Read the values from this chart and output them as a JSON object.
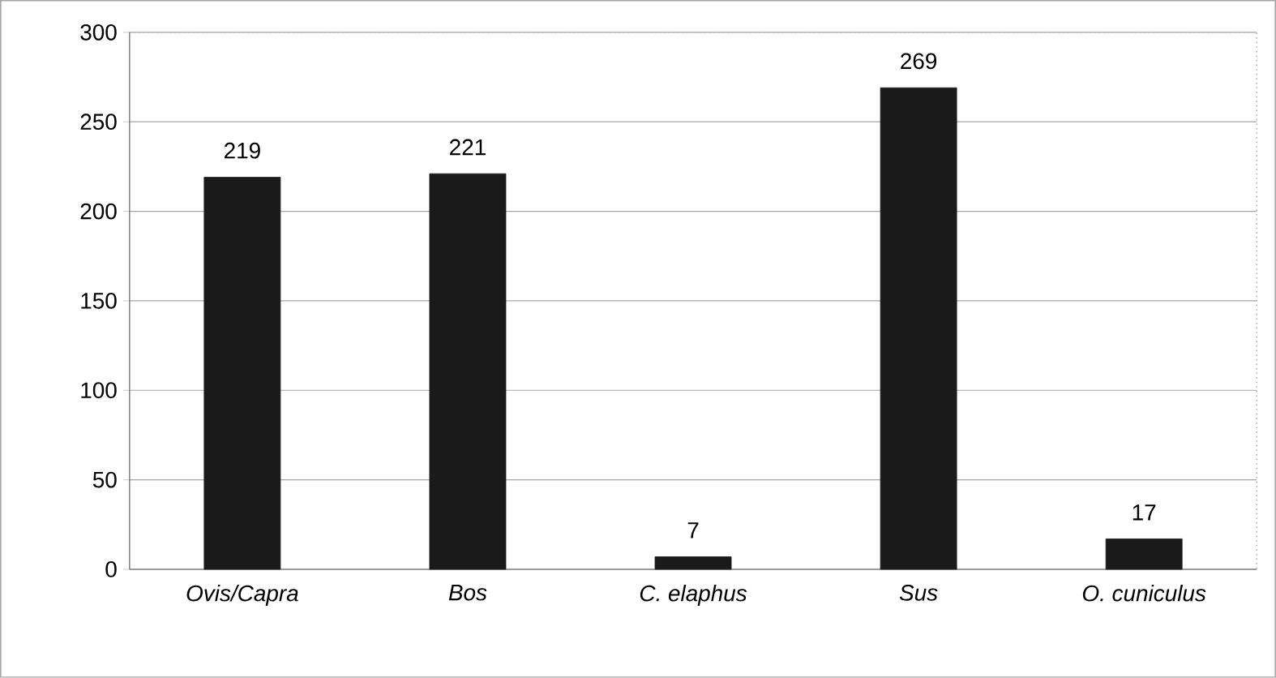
{
  "chart_data": {
    "type": "bar",
    "categories": [
      "Ovis/Capra",
      "Bos",
      "C. elaphus",
      "Sus",
      "O. cuniculus"
    ],
    "values": [
      219,
      221,
      7,
      269,
      17
    ],
    "color": "#1a1a1a",
    "ylim": [
      0,
      300
    ],
    "yticks": [
      0,
      50,
      100,
      150,
      200,
      250,
      300
    ],
    "grid": "y",
    "data_labels": true
  }
}
